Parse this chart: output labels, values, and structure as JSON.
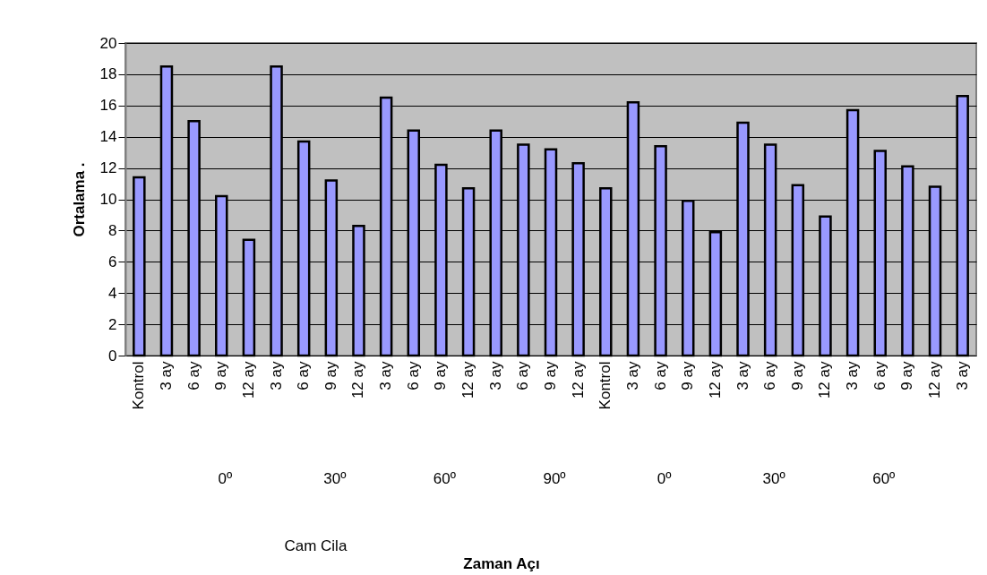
{
  "chart_data": {
    "type": "bar",
    "ylabel": "Ortalama .",
    "categories": [
      "Kontrol",
      "3 ay",
      "6 ay",
      "9 ay",
      "12 ay",
      "3 ay",
      "6 ay",
      "9 ay",
      "12 ay",
      "3 ay",
      "6 ay",
      "9 ay",
      "12 ay",
      "3 ay",
      "6 ay",
      "9 ay",
      "12 ay",
      "Kontrol",
      "3 ay",
      "6 ay",
      "9 ay",
      "12 ay",
      "3 ay",
      "6 ay",
      "9 ay",
      "12 ay",
      "3 ay",
      "6 ay",
      "9 ay",
      "12 ay",
      "3 ay"
    ],
    "values": [
      11.4,
      18.5,
      15.0,
      10.2,
      7.4,
      18.5,
      13.7,
      11.2,
      8.3,
      16.5,
      14.4,
      12.2,
      10.7,
      14.4,
      13.5,
      13.2,
      12.3,
      10.7,
      16.2,
      13.4,
      9.9,
      7.9,
      14.9,
      13.5,
      10.9,
      8.9,
      15.7,
      13.1,
      12.1,
      10.8,
      16.6
    ],
    "color": "#9999ff",
    "ylim": [
      0,
      20
    ],
    "yticks": [
      0,
      2,
      4,
      6,
      8,
      10,
      12,
      14,
      16,
      18,
      20
    ],
    "grid": "y",
    "annotations": [
      "0º",
      "30º",
      "60º",
      "90º",
      "0º",
      "30º",
      "60º",
      "Cam Cila",
      "Zaman Açı"
    ]
  }
}
